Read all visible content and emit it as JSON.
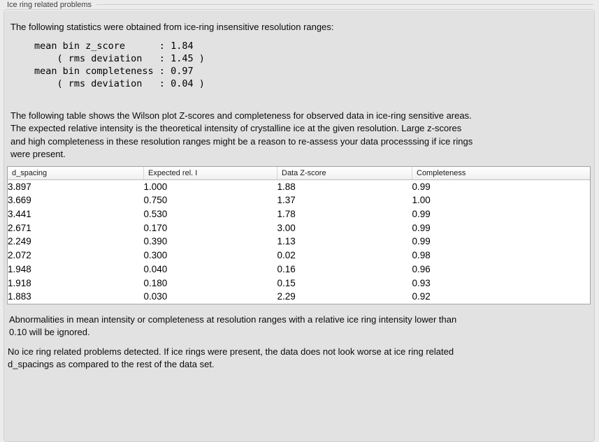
{
  "section": {
    "title": "Ice ring related problems"
  },
  "intro": {
    "text": "The following statistics were obtained from ice-ring insensitive resolution ranges:"
  },
  "stats_block": {
    "text": "mean bin z_score      : 1.84\n    ( rms deviation   : 1.45 )\nmean bin completeness : 0.97\n    ( rms deviation   : 0.04 )"
  },
  "table_description": {
    "text": "The following table shows the Wilson plot Z-scores and completeness for observed data in ice-ring sensitive areas.\nThe expected relative intensity is the theoretical intensity of crystalline ice at the given resolution. Large z-scores\nand high completeness in these resolution ranges might be a reason to re-assess your data processsing if ice rings\nwere present."
  },
  "table": {
    "columns": [
      "d_spacing",
      "Expected rel. I",
      "Data Z-score",
      "Completeness"
    ],
    "rows": [
      [
        "3.897",
        "1.000",
        "1.88",
        "0.99"
      ],
      [
        "3.669",
        "0.750",
        "1.37",
        "1.00"
      ],
      [
        "3.441",
        "0.530",
        "1.78",
        "0.99"
      ],
      [
        "2.671",
        "0.170",
        "3.00",
        "0.99"
      ],
      [
        "2.249",
        "0.390",
        "1.13",
        "0.99"
      ],
      [
        "2.072",
        "0.300",
        "0.02",
        "0.98"
      ],
      [
        "1.948",
        "0.040",
        "0.16",
        "0.96"
      ],
      [
        "1.918",
        "0.180",
        "0.15",
        "0.93"
      ],
      [
        "1.883",
        "0.030",
        "2.29",
        "0.92"
      ]
    ]
  },
  "notes": {
    "ignore_note": "Abnormalities in mean intensity or completeness at resolution ranges with a relative ice ring intensity lower than\n0.10 will be ignored.",
    "conclusion": "No ice ring related problems detected. If ice rings were present, the data does not look worse at ice ring related\nd_spacings as compared to the rest of the data set."
  },
  "colors": {
    "page_background": "#ececec",
    "panel_background": "#e2e2e2",
    "table_background": "#ffffff",
    "table_border": "#a3a3a3",
    "text": "#0a0a0a"
  }
}
